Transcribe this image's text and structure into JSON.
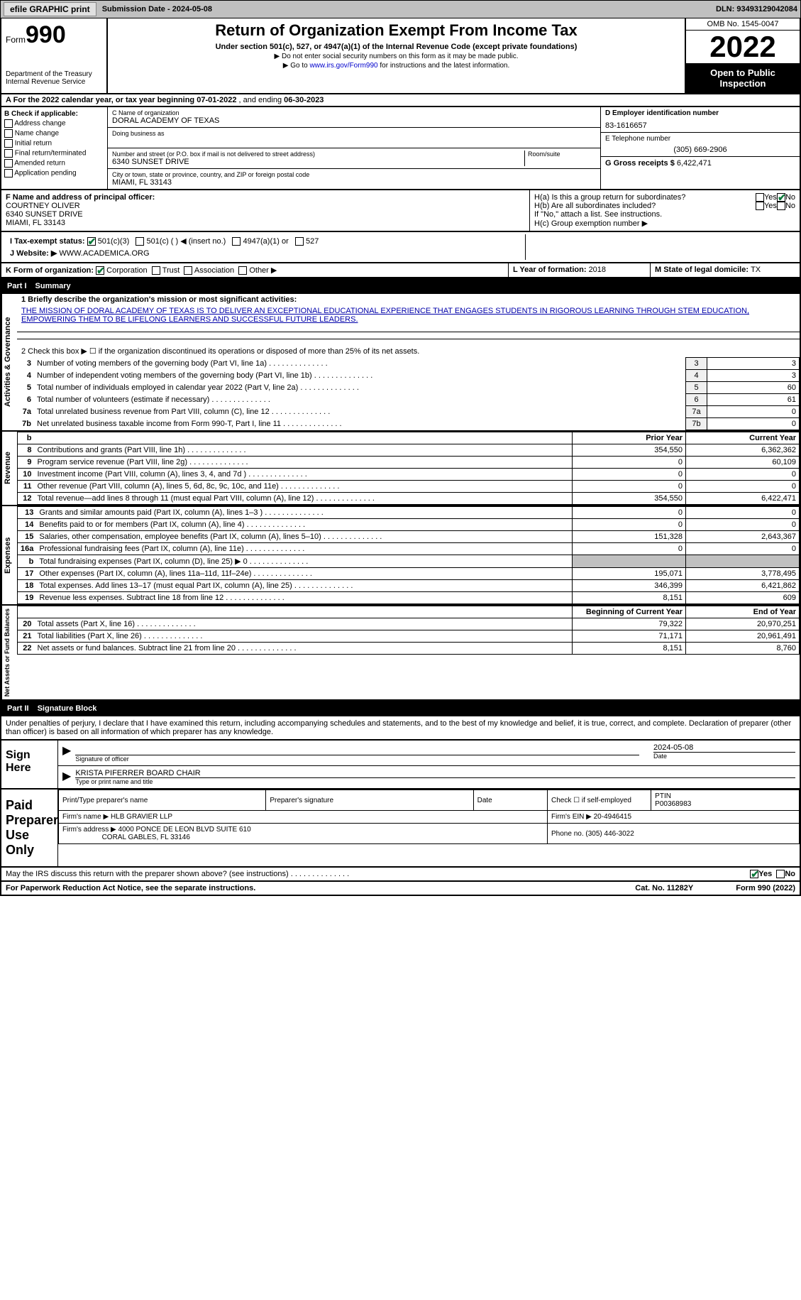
{
  "topbar": {
    "efile": "efile GRAPHIC print",
    "submission_label": "Submission Date - ",
    "submission_date": "2024-05-08",
    "dln_label": "DLN: ",
    "dln": "93493129042084"
  },
  "header": {
    "form_prefix": "Form",
    "form_num": "990",
    "dept": "Department of the Treasury",
    "irs": "Internal Revenue Service",
    "title": "Return of Organization Exempt From Income Tax",
    "subtitle": "Under section 501(c), 527, or 4947(a)(1) of the Internal Revenue Code (except private foundations)",
    "note1": "▶ Do not enter social security numbers on this form as it may be made public.",
    "note2_pre": "▶ Go to ",
    "note2_link": "www.irs.gov/Form990",
    "note2_post": " for instructions and the latest information.",
    "omb": "OMB No. 1545-0047",
    "year": "2022",
    "inspect": "Open to Public Inspection"
  },
  "row_a": {
    "text_pre": "A For the 2022 calendar year, or tax year beginning ",
    "begin": "07-01-2022",
    "text_mid": " , and ending ",
    "end": "06-30-2023"
  },
  "col_b": {
    "label": "B Check if applicable:",
    "items": [
      "Address change",
      "Name change",
      "Initial return",
      "Final return/terminated",
      "Amended return",
      "Application pending"
    ]
  },
  "col_c": {
    "name_label": "C Name of organization",
    "name": "DORAL ACADEMY OF TEXAS",
    "dba_label": "Doing business as",
    "street_label": "Number and street (or P.O. box if mail is not delivered to street address)",
    "room_label": "Room/suite",
    "street": "6340 SUNSET DRIVE",
    "city_label": "City or town, state or province, country, and ZIP or foreign postal code",
    "city": "MIAMI, FL  33143"
  },
  "col_d": {
    "ein_label": "D Employer identification number",
    "ein": "83-1616657",
    "tel_label": "E Telephone number",
    "tel": "(305) 669-2906",
    "gross_label": "G Gross receipts $ ",
    "gross": "6,422,471"
  },
  "sec_f": {
    "label": "F Name and address of principal officer:",
    "name": "COURTNEY OLIVER",
    "addr1": "6340 SUNSET DRIVE",
    "addr2": "MIAMI, FL  33143"
  },
  "sec_h": {
    "ha": "H(a)  Is this a group return for subordinates?",
    "hb": "H(b)  Are all subordinates included?",
    "hb_note": "If \"No,\" attach a list. See instructions.",
    "hc": "H(c)  Group exemption number ▶",
    "yes": "Yes",
    "no": "No"
  },
  "row_i": {
    "label": "I    Tax-exempt status:",
    "opts": [
      "501(c)(3)",
      "501(c) (  ) ◀ (insert no.)",
      "4947(a)(1) or",
      "527"
    ]
  },
  "row_j": {
    "label": "J   Website: ▶",
    "val": "WWW.ACADEMICA.ORG"
  },
  "row_k": {
    "label": "K Form of organization:",
    "opts": [
      "Corporation",
      "Trust",
      "Association",
      "Other ▶"
    ]
  },
  "row_l": {
    "label": "L Year of formation: ",
    "val": "2018"
  },
  "row_m": {
    "label": "M State of legal domicile: ",
    "val": "TX"
  },
  "part1": {
    "label": "Part I",
    "title": "Summary"
  },
  "summary": {
    "line1_label": "1   Briefly describe the organization's mission or most significant activities:",
    "mission": "THE MISSION OF DORAL ACADEMY OF TEXAS IS TO DELIVER AN EXCEPTIONAL EDUCATIONAL EXPERIENCE THAT ENGAGES STUDENTS IN RIGOROUS LEARNING THROUGH STEM EDUCATION, EMPOWERING THEM TO BE LIFELONG LEARNERS AND SUCCESSFUL FUTURE LEADERS.",
    "line2": "2   Check this box ▶ ☐ if the organization discontinued its operations or disposed of more than 25% of its net assets.",
    "gov_rows": [
      {
        "n": "3",
        "d": "Number of voting members of the governing body (Part VI, line 1a)",
        "v": "3"
      },
      {
        "n": "4",
        "d": "Number of independent voting members of the governing body (Part VI, line 1b)",
        "v": "3"
      },
      {
        "n": "5",
        "d": "Total number of individuals employed in calendar year 2022 (Part V, line 2a)",
        "v": "60"
      },
      {
        "n": "6",
        "d": "Total number of volunteers (estimate if necessary)",
        "v": "61"
      },
      {
        "n": "7a",
        "d": "Total unrelated business revenue from Part VIII, column (C), line 12",
        "v": "0"
      },
      {
        "n": "7b",
        "d": "Net unrelated business taxable income from Form 990-T, Part I, line 11",
        "v": "0"
      }
    ],
    "py_label": "Prior Year",
    "cy_label": "Current Year",
    "rev_rows": [
      {
        "n": "8",
        "d": "Contributions and grants (Part VIII, line 1h)",
        "py": "354,550",
        "cy": "6,362,362"
      },
      {
        "n": "9",
        "d": "Program service revenue (Part VIII, line 2g)",
        "py": "0",
        "cy": "60,109"
      },
      {
        "n": "10",
        "d": "Investment income (Part VIII, column (A), lines 3, 4, and 7d )",
        "py": "0",
        "cy": "0"
      },
      {
        "n": "11",
        "d": "Other revenue (Part VIII, column (A), lines 5, 6d, 8c, 9c, 10c, and 11e)",
        "py": "0",
        "cy": "0"
      },
      {
        "n": "12",
        "d": "Total revenue—add lines 8 through 11 (must equal Part VIII, column (A), line 12)",
        "py": "354,550",
        "cy": "6,422,471"
      }
    ],
    "exp_rows": [
      {
        "n": "13",
        "d": "Grants and similar amounts paid (Part IX, column (A), lines 1–3 )",
        "py": "0",
        "cy": "0"
      },
      {
        "n": "14",
        "d": "Benefits paid to or for members (Part IX, column (A), line 4)",
        "py": "0",
        "cy": "0"
      },
      {
        "n": "15",
        "d": "Salaries, other compensation, employee benefits (Part IX, column (A), lines 5–10)",
        "py": "151,328",
        "cy": "2,643,367"
      },
      {
        "n": "16a",
        "d": "Professional fundraising fees (Part IX, column (A), line 11e)",
        "py": "0",
        "cy": "0"
      },
      {
        "n": "b",
        "d": "Total fundraising expenses (Part IX, column (D), line 25) ▶ 0",
        "py": "shade",
        "cy": "shade"
      },
      {
        "n": "17",
        "d": "Other expenses (Part IX, column (A), lines 11a–11d, 11f–24e)",
        "py": "195,071",
        "cy": "3,778,495"
      },
      {
        "n": "18",
        "d": "Total expenses. Add lines 13–17 (must equal Part IX, column (A), line 25)",
        "py": "346,399",
        "cy": "6,421,862"
      },
      {
        "n": "19",
        "d": "Revenue less expenses. Subtract line 18 from line 12",
        "py": "8,151",
        "cy": "609"
      }
    ],
    "boy_label": "Beginning of Current Year",
    "eoy_label": "End of Year",
    "net_rows": [
      {
        "n": "20",
        "d": "Total assets (Part X, line 16)",
        "py": "79,322",
        "cy": "20,970,251"
      },
      {
        "n": "21",
        "d": "Total liabilities (Part X, line 26)",
        "py": "71,171",
        "cy": "20,961,491"
      },
      {
        "n": "22",
        "d": "Net assets or fund balances. Subtract line 21 from line 20",
        "py": "8,151",
        "cy": "8,760"
      }
    ],
    "side_gov": "Activities & Governance",
    "side_rev": "Revenue",
    "side_exp": "Expenses",
    "side_net": "Net Assets or Fund Balances"
  },
  "part2": {
    "label": "Part II",
    "title": "Signature Block"
  },
  "sig": {
    "penalty": "Under penalties of perjury, I declare that I have examined this return, including accompanying schedules and statements, and to the best of my knowledge and belief, it is true, correct, and complete. Declaration of preparer (other than officer) is based on all information of which preparer has any knowledge.",
    "sign_here": "Sign Here",
    "sig_officer": "Signature of officer",
    "sig_date": "2024-05-08",
    "date_label": "Date",
    "name_title": "KRISTA PIFERRER  BOARD CHAIR",
    "type_label": "Type or print name and title"
  },
  "prep": {
    "label": "Paid Preparer Use Only",
    "print_label": "Print/Type preparer's name",
    "sig_label": "Preparer's signature",
    "date_label": "Date",
    "check_label": "Check ☐ if self-employed",
    "ptin_label": "PTIN",
    "ptin": "P00368983",
    "firm_name_label": "Firm's name    ▶",
    "firm_name": "HLB GRAVIER LLP",
    "firm_ein_label": "Firm's EIN ▶",
    "firm_ein": "20-4946415",
    "firm_addr_label": "Firm's address ▶",
    "firm_addr1": "4000 PONCE DE LEON BLVD SUITE 610",
    "firm_addr2": "CORAL GABLES, FL  33146",
    "phone_label": "Phone no. ",
    "phone": "(305) 446-3022"
  },
  "footer": {
    "discuss": "May the IRS discuss this return with the preparer shown above? (see instructions)",
    "yes": "Yes",
    "no": "No",
    "paperwork": "For Paperwork Reduction Act Notice, see the separate instructions.",
    "cat": "Cat. No. 11282Y",
    "form": "Form 990 (2022)"
  }
}
